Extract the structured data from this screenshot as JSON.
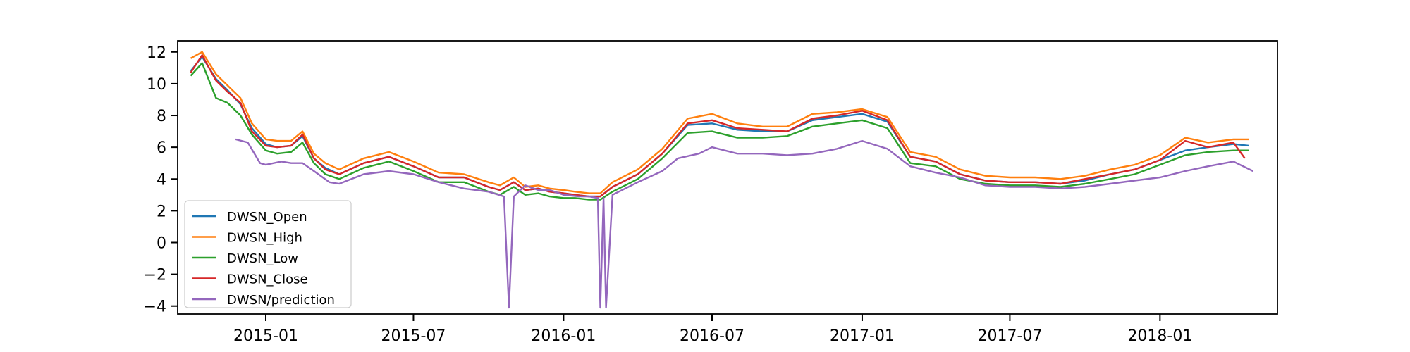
{
  "chart_data": {
    "type": "line",
    "title": "",
    "xlabel": "",
    "ylabel": "",
    "x_ticks": [
      "2015-01",
      "2015-07",
      "2016-01",
      "2016-07",
      "2017-01",
      "2017-07",
      "2018-01"
    ],
    "y_ticks": [
      12,
      10,
      8,
      6,
      4,
      2,
      0,
      -2,
      -4
    ],
    "ylim": [
      -4.5,
      12.7
    ],
    "xlim": [
      "2014-09-15",
      "2018-05-25"
    ],
    "grid": false,
    "legend_position": "lower-left",
    "series": [
      {
        "name": "DWSN_Open",
        "color": "#1f77b4",
        "x": [
          "2014-10-01",
          "2014-10-15",
          "2014-11-01",
          "2014-11-15",
          "2014-12-01",
          "2014-12-15",
          "2015-01-01",
          "2015-01-15",
          "2015-02-01",
          "2015-02-15",
          "2015-03-01",
          "2015-03-15",
          "2015-04-01",
          "2015-05-01",
          "2015-06-01",
          "2015-07-01",
          "2015-08-01",
          "2015-09-01",
          "2015-10-01",
          "2015-10-15",
          "2015-11-01",
          "2015-11-15",
          "2015-12-01",
          "2015-12-15",
          "2016-01-01",
          "2016-01-15",
          "2016-02-01",
          "2016-02-15",
          "2016-03-01",
          "2016-04-01",
          "2016-05-01",
          "2016-06-01",
          "2016-07-01",
          "2016-08-01",
          "2016-09-01",
          "2016-10-01",
          "2016-11-01",
          "2016-12-01",
          "2017-01-01",
          "2017-02-01",
          "2017-03-01",
          "2017-04-01",
          "2017-05-01",
          "2017-06-01",
          "2017-07-01",
          "2017-08-01",
          "2017-09-01",
          "2017-10-01",
          "2017-11-01",
          "2017-12-01",
          "2018-01-01",
          "2018-02-01",
          "2018-03-01",
          "2018-04-01",
          "2018-04-20"
        ],
        "y": [
          10.8,
          11.7,
          10.3,
          9.6,
          8.7,
          7.2,
          6.2,
          6.0,
          6.1,
          6.7,
          5.3,
          4.7,
          4.3,
          5.0,
          5.4,
          4.8,
          4.1,
          4.1,
          3.5,
          3.3,
          3.8,
          3.3,
          3.4,
          3.2,
          3.1,
          3.0,
          2.9,
          2.9,
          3.5,
          4.3,
          5.6,
          7.4,
          7.5,
          7.1,
          7.0,
          7.0,
          7.7,
          7.9,
          8.1,
          7.6,
          5.4,
          5.1,
          4.3,
          3.9,
          3.8,
          3.8,
          3.7,
          3.9,
          4.3,
          4.6,
          5.2,
          5.8,
          6.0,
          6.2,
          6.1
        ]
      },
      {
        "name": "DWSN_High",
        "color": "#ff7f0e",
        "x": [
          "2014-10-01",
          "2014-10-15",
          "2014-11-01",
          "2014-11-15",
          "2014-12-01",
          "2014-12-15",
          "2015-01-01",
          "2015-01-15",
          "2015-02-01",
          "2015-02-15",
          "2015-03-01",
          "2015-03-15",
          "2015-04-01",
          "2015-05-01",
          "2015-06-01",
          "2015-07-01",
          "2015-08-01",
          "2015-09-01",
          "2015-10-01",
          "2015-10-15",
          "2015-11-01",
          "2015-11-15",
          "2015-12-01",
          "2015-12-15",
          "2016-01-01",
          "2016-01-15",
          "2016-02-01",
          "2016-02-15",
          "2016-03-01",
          "2016-04-01",
          "2016-05-01",
          "2016-06-01",
          "2016-07-01",
          "2016-08-01",
          "2016-09-01",
          "2016-10-01",
          "2016-11-01",
          "2016-12-01",
          "2017-01-01",
          "2017-02-01",
          "2017-03-01",
          "2017-04-01",
          "2017-05-01",
          "2017-06-01",
          "2017-07-01",
          "2017-08-01",
          "2017-09-01",
          "2017-10-01",
          "2017-11-01",
          "2017-12-01",
          "2018-01-01",
          "2018-02-01",
          "2018-03-01",
          "2018-04-01",
          "2018-04-20"
        ],
        "y": [
          11.6,
          12.0,
          10.6,
          9.9,
          9.1,
          7.5,
          6.5,
          6.4,
          6.4,
          7.0,
          5.6,
          5.0,
          4.6,
          5.3,
          5.7,
          5.1,
          4.4,
          4.3,
          3.8,
          3.6,
          4.1,
          3.5,
          3.6,
          3.4,
          3.3,
          3.2,
          3.1,
          3.1,
          3.8,
          4.6,
          5.9,
          7.8,
          8.1,
          7.5,
          7.3,
          7.3,
          8.1,
          8.2,
          8.4,
          7.9,
          5.7,
          5.4,
          4.6,
          4.2,
          4.1,
          4.1,
          4.0,
          4.2,
          4.6,
          4.9,
          5.5,
          6.6,
          6.3,
          6.5,
          6.5
        ]
      },
      {
        "name": "DWSN_Low",
        "color": "#2ca02c",
        "x": [
          "2014-10-01",
          "2014-10-15",
          "2014-11-01",
          "2014-11-15",
          "2014-12-01",
          "2014-12-15",
          "2015-01-01",
          "2015-01-15",
          "2015-02-01",
          "2015-02-15",
          "2015-03-01",
          "2015-03-15",
          "2015-04-01",
          "2015-05-01",
          "2015-06-01",
          "2015-07-01",
          "2015-08-01",
          "2015-09-01",
          "2015-10-01",
          "2015-10-15",
          "2015-11-01",
          "2015-11-15",
          "2015-12-01",
          "2015-12-15",
          "2016-01-01",
          "2016-01-15",
          "2016-02-01",
          "2016-02-15",
          "2016-03-01",
          "2016-04-01",
          "2016-05-01",
          "2016-06-01",
          "2016-07-01",
          "2016-08-01",
          "2016-09-01",
          "2016-10-01",
          "2016-11-01",
          "2016-12-01",
          "2017-01-01",
          "2017-02-01",
          "2017-03-01",
          "2017-04-01",
          "2017-05-01",
          "2017-06-01",
          "2017-07-01",
          "2017-08-01",
          "2017-09-01",
          "2017-10-01",
          "2017-11-01",
          "2017-12-01",
          "2018-01-01",
          "2018-02-01",
          "2018-03-01",
          "2018-04-01",
          "2018-04-20"
        ],
        "y": [
          10.5,
          11.3,
          9.1,
          8.8,
          8.0,
          6.8,
          5.8,
          5.6,
          5.7,
          6.3,
          5.0,
          4.3,
          4.0,
          4.7,
          5.1,
          4.5,
          3.8,
          3.8,
          3.2,
          3.0,
          3.5,
          3.0,
          3.1,
          2.9,
          2.8,
          2.8,
          2.7,
          2.7,
          3.2,
          4.0,
          5.3,
          6.9,
          7.0,
          6.6,
          6.6,
          6.7,
          7.3,
          7.5,
          7.7,
          7.2,
          5.0,
          4.8,
          4.0,
          3.7,
          3.6,
          3.6,
          3.5,
          3.7,
          4.0,
          4.3,
          4.9,
          5.5,
          5.7,
          5.8,
          5.8
        ]
      },
      {
        "name": "DWSN_Close",
        "color": "#d62728",
        "x": [
          "2014-10-01",
          "2014-10-15",
          "2014-11-01",
          "2014-11-15",
          "2014-12-01",
          "2014-12-15",
          "2015-01-01",
          "2015-01-15",
          "2015-02-01",
          "2015-02-15",
          "2015-03-01",
          "2015-03-15",
          "2015-04-01",
          "2015-05-01",
          "2015-06-01",
          "2015-07-01",
          "2015-08-01",
          "2015-09-01",
          "2015-10-01",
          "2015-10-15",
          "2015-11-01",
          "2015-11-15",
          "2015-12-01",
          "2015-12-15",
          "2016-01-01",
          "2016-01-15",
          "2016-02-01",
          "2016-02-15",
          "2016-03-01",
          "2016-04-01",
          "2016-05-01",
          "2016-06-01",
          "2016-07-01",
          "2016-08-01",
          "2016-09-01",
          "2016-10-01",
          "2016-11-01",
          "2016-12-01",
          "2017-01-01",
          "2017-02-01",
          "2017-03-01",
          "2017-04-01",
          "2017-05-01",
          "2017-06-01",
          "2017-07-01",
          "2017-08-01",
          "2017-09-01",
          "2017-10-01",
          "2017-11-01",
          "2017-12-01",
          "2018-01-01",
          "2018-02-01",
          "2018-03-01",
          "2018-04-01",
          "2018-04-15"
        ],
        "y": [
          10.7,
          11.8,
          10.2,
          9.5,
          8.8,
          7.0,
          6.1,
          6.0,
          6.1,
          6.8,
          5.3,
          4.6,
          4.3,
          5.0,
          5.4,
          4.8,
          4.1,
          4.1,
          3.5,
          3.3,
          3.8,
          3.3,
          3.4,
          3.2,
          3.1,
          3.0,
          2.9,
          2.9,
          3.5,
          4.3,
          5.6,
          7.5,
          7.7,
          7.2,
          7.1,
          7.0,
          7.8,
          8.0,
          8.3,
          7.7,
          5.4,
          5.1,
          4.3,
          3.9,
          3.8,
          3.8,
          3.7,
          4.0,
          4.3,
          4.6,
          5.2,
          6.4,
          6.0,
          6.3,
          5.3
        ]
      },
      {
        "name": "DWSN/prediction",
        "color": "#9467bd",
        "x": [
          "2014-11-25",
          "2014-12-10",
          "2014-12-25",
          "2015-01-01",
          "2015-01-20",
          "2015-02-01",
          "2015-02-15",
          "2015-03-01",
          "2015-03-20",
          "2015-04-01",
          "2015-05-01",
          "2015-06-01",
          "2015-07-01",
          "2015-08-01",
          "2015-09-01",
          "2015-10-01",
          "2015-10-20",
          "2015-10-26",
          "2015-11-01",
          "2015-11-15",
          "2015-12-01",
          "2015-12-15",
          "2016-01-01",
          "2016-01-20",
          "2016-02-01",
          "2016-02-12",
          "2016-02-15",
          "2016-02-19",
          "2016-02-22",
          "2016-03-01",
          "2016-04-01",
          "2016-05-01",
          "2016-05-20",
          "2016-06-15",
          "2016-07-01",
          "2016-08-01",
          "2016-09-01",
          "2016-10-01",
          "2016-11-01",
          "2016-12-01",
          "2017-01-01",
          "2017-02-01",
          "2017-03-01",
          "2017-04-01",
          "2017-05-01",
          "2017-06-01",
          "2017-07-01",
          "2017-08-01",
          "2017-09-01",
          "2017-10-01",
          "2017-11-01",
          "2017-12-01",
          "2018-01-01",
          "2018-02-01",
          "2018-03-01",
          "2018-04-01",
          "2018-04-25"
        ],
        "y": [
          6.5,
          6.3,
          5.0,
          4.9,
          5.1,
          5.0,
          5.0,
          4.5,
          3.8,
          3.7,
          4.3,
          4.5,
          4.3,
          3.8,
          3.4,
          3.2,
          2.9,
          -4.1,
          2.9,
          3.6,
          3.3,
          3.3,
          3.0,
          2.9,
          2.9,
          2.8,
          -4.1,
          2.8,
          -4.1,
          3.0,
          3.8,
          4.5,
          5.3,
          5.6,
          6.0,
          5.6,
          5.6,
          5.5,
          5.6,
          5.9,
          6.4,
          5.9,
          4.8,
          4.4,
          4.1,
          3.6,
          3.5,
          3.5,
          3.4,
          3.5,
          3.7,
          3.9,
          4.1,
          4.5,
          4.8,
          5.1,
          4.5
        ]
      }
    ]
  }
}
